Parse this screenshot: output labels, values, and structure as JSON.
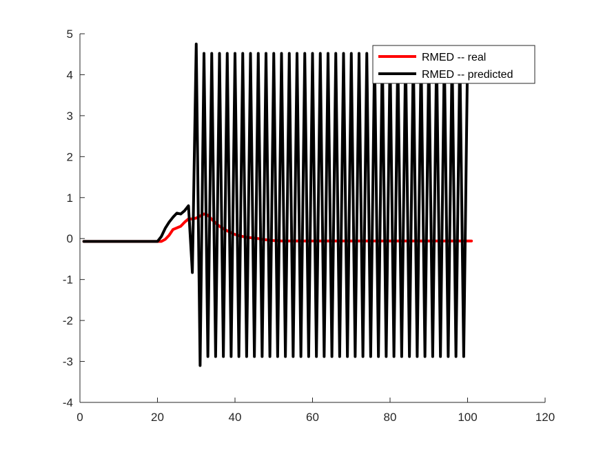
{
  "chart_data": {
    "type": "line",
    "title": "",
    "xlabel": "",
    "ylabel": "",
    "xlim": [
      0,
      120
    ],
    "ylim": [
      -4,
      5
    ],
    "xticks": [
      0,
      20,
      40,
      60,
      80,
      100,
      120
    ],
    "yticks": [
      -4,
      -3,
      -2,
      -1,
      0,
      1,
      2,
      3,
      4,
      5
    ],
    "grid": false,
    "legend_position": "top-right",
    "series": [
      {
        "name": "RMED -- real",
        "color": "#ff0000",
        "x": [
          1,
          2,
          3,
          4,
          5,
          6,
          7,
          8,
          9,
          10,
          11,
          12,
          13,
          14,
          15,
          16,
          17,
          18,
          19,
          20,
          21,
          22,
          23,
          24,
          25,
          26,
          27,
          28,
          29,
          30,
          31,
          32,
          33,
          34,
          35,
          36,
          37,
          38,
          39,
          40,
          41,
          42,
          43,
          44,
          45,
          46,
          47,
          48,
          49,
          50,
          51,
          52,
          53,
          54,
          55,
          56,
          57,
          58,
          59,
          60,
          61,
          62,
          63,
          64,
          65,
          66,
          67,
          68,
          69,
          70,
          71,
          72,
          73,
          74,
          75,
          76,
          77,
          78,
          79,
          80,
          81,
          82,
          83,
          84,
          85,
          86,
          87,
          88,
          89,
          90,
          91,
          92,
          93,
          94,
          95,
          96,
          97,
          98,
          99,
          100,
          101
        ],
        "y": [
          -0.07,
          -0.07,
          -0.07,
          -0.07,
          -0.07,
          -0.07,
          -0.07,
          -0.07,
          -0.07,
          -0.07,
          -0.07,
          -0.07,
          -0.07,
          -0.07,
          -0.07,
          -0.07,
          -0.07,
          -0.07,
          -0.07,
          -0.07,
          -0.07,
          -0.02,
          0.08,
          0.22,
          0.26,
          0.3,
          0.4,
          0.48,
          0.48,
          0.5,
          0.55,
          0.6,
          0.57,
          0.47,
          0.38,
          0.3,
          0.24,
          0.19,
          0.14,
          0.1,
          0.07,
          0.05,
          0.03,
          0.02,
          0.01,
          0.0,
          -0.02,
          -0.03,
          -0.04,
          -0.05,
          -0.05,
          -0.06,
          -0.06,
          -0.06,
          -0.06,
          -0.06,
          -0.06,
          -0.06,
          -0.06,
          -0.06,
          -0.06,
          -0.06,
          -0.06,
          -0.06,
          -0.06,
          -0.06,
          -0.06,
          -0.06,
          -0.06,
          -0.06,
          -0.06,
          -0.06,
          -0.06,
          -0.06,
          -0.06,
          -0.06,
          -0.06,
          -0.06,
          -0.06,
          -0.06,
          -0.06,
          -0.06,
          -0.06,
          -0.06,
          -0.06,
          -0.06,
          -0.06,
          -0.06,
          -0.06,
          -0.06,
          -0.06,
          -0.06,
          -0.06,
          -0.06,
          -0.06,
          -0.06,
          -0.06,
          -0.06,
          -0.06,
          -0.06,
          -0.06
        ]
      },
      {
        "name": "RMED -- predicted",
        "color": "#000000",
        "x": [
          1,
          2,
          3,
          4,
          5,
          6,
          7,
          8,
          9,
          10,
          11,
          12,
          13,
          14,
          15,
          16,
          17,
          18,
          19,
          20,
          21,
          22,
          23,
          24,
          25,
          26,
          27,
          28,
          29,
          30,
          31,
          32,
          33,
          34,
          35,
          36,
          37,
          38,
          39,
          40,
          41,
          42,
          43,
          44,
          45,
          46,
          47,
          48,
          49,
          50,
          51,
          52,
          53,
          54,
          55,
          56,
          57,
          58,
          59,
          60,
          61,
          62,
          63,
          64,
          65,
          66,
          67,
          68,
          69,
          70,
          71,
          72,
          73,
          74,
          75,
          76,
          77,
          78,
          79,
          80,
          81,
          82,
          83,
          84,
          85,
          86,
          87,
          88,
          89,
          90,
          91,
          92,
          93,
          94,
          95,
          96,
          97,
          98,
          99,
          100
        ],
        "y": [
          -0.07,
          -0.07,
          -0.07,
          -0.07,
          -0.07,
          -0.07,
          -0.07,
          -0.07,
          -0.07,
          -0.07,
          -0.07,
          -0.07,
          -0.07,
          -0.07,
          -0.07,
          -0.07,
          -0.07,
          -0.07,
          -0.07,
          -0.07,
          0.05,
          0.25,
          0.4,
          0.52,
          0.62,
          0.6,
          0.68,
          0.8,
          -0.83,
          4.75,
          -3.1,
          4.52,
          -2.88,
          4.52,
          -2.88,
          4.52,
          -2.88,
          4.52,
          -2.88,
          4.52,
          -2.88,
          4.52,
          -2.88,
          4.52,
          -2.88,
          4.52,
          -2.88,
          4.52,
          -2.88,
          4.52,
          -2.88,
          4.52,
          -2.88,
          4.52,
          -2.88,
          4.52,
          -2.88,
          4.52,
          -2.88,
          4.52,
          -2.88,
          4.52,
          -2.88,
          4.52,
          -2.88,
          4.52,
          -2.88,
          4.52,
          -2.88,
          4.52,
          -2.88,
          4.52,
          -2.88,
          4.52,
          -2.88,
          4.52,
          -2.88,
          4.52,
          -2.88,
          4.52,
          -2.88,
          4.52,
          -2.88,
          4.52,
          -2.88,
          4.52,
          -2.88,
          4.52,
          -2.88,
          4.52,
          -2.88,
          4.52,
          -2.88,
          4.52,
          -2.88,
          4.52,
          -2.88,
          4.52,
          -2.88,
          4.52
        ]
      }
    ]
  }
}
